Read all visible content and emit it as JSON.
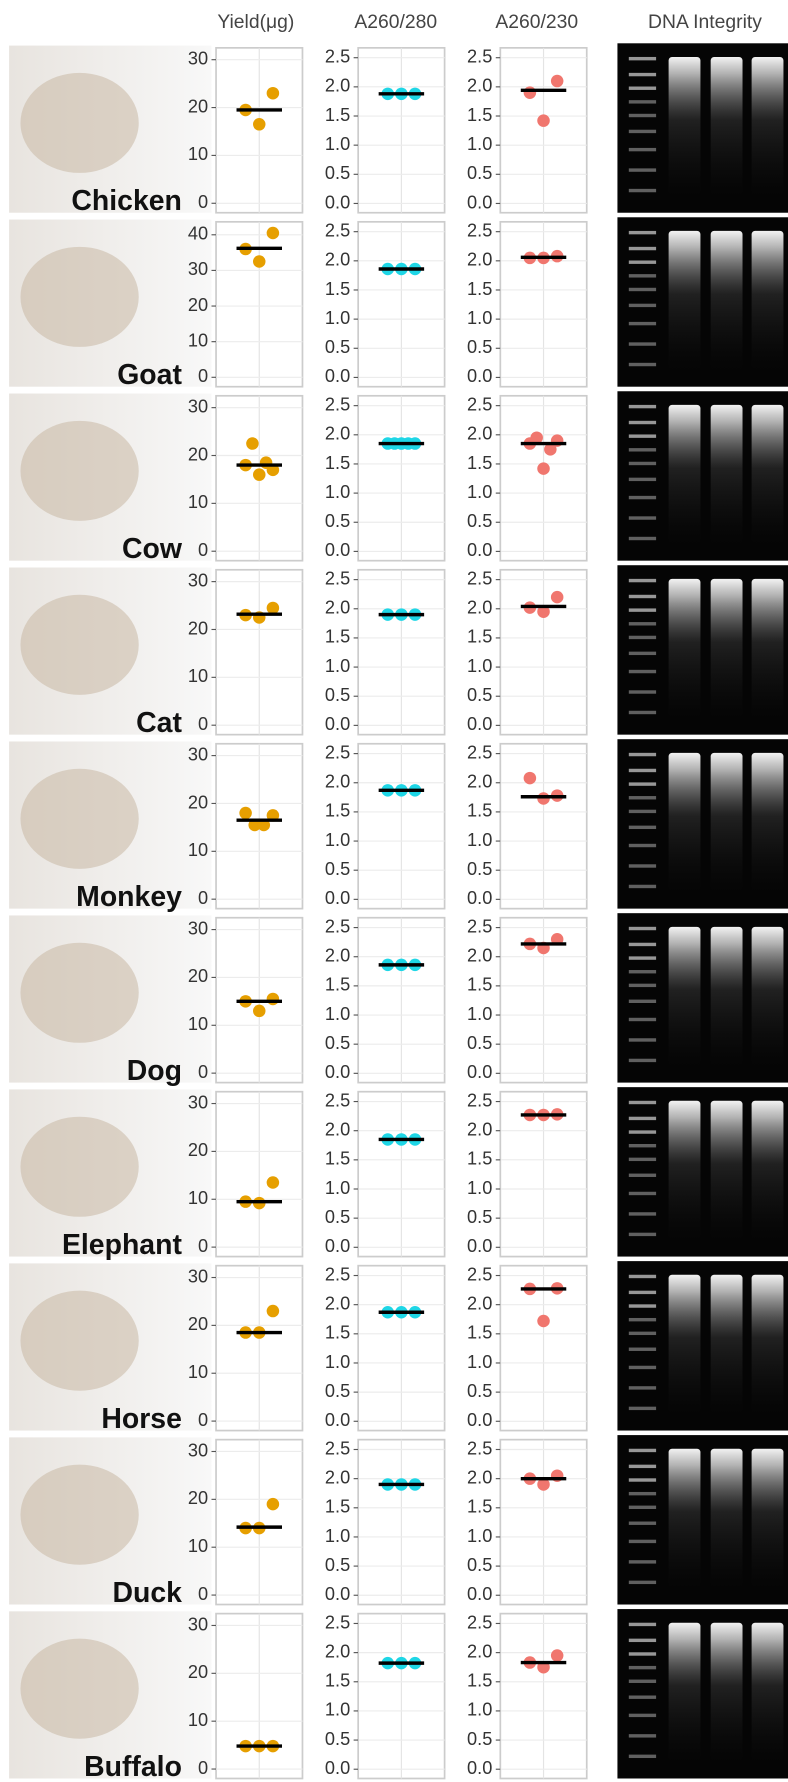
{
  "columns": [
    "Yield(μg)",
    "A260/280",
    "A260/230",
    "DNA Integrity"
  ],
  "rows": [
    "Chicken",
    "Goat",
    "Cow",
    "Cat",
    "Monkey",
    "Dog",
    "Elephant",
    "Horse",
    "Duck",
    "Buffalo"
  ],
  "chart_data": [
    {
      "type": "dot",
      "values": [
        19.5,
        16.5,
        23
      ],
      "median": 19.5,
      "ylim": [
        -1.5,
        32
      ],
      "yticks": [
        0,
        10,
        20,
        30
      ],
      "color": "#E69F00",
      "grid": true
    },
    {
      "type": "dot",
      "values": [
        1.88,
        1.88,
        1.88
      ],
      "median": 1.88,
      "ylim": [
        -0.12,
        2.63
      ],
      "yticks": [
        {
          "value": 0,
          "label": "0.0"
        },
        0.5,
        {
          "value": 1,
          "label": "1.0"
        },
        1.5,
        {
          "value": 2,
          "label": "2.0"
        },
        2.5
      ],
      "color": "#1ED6E6",
      "grid": true
    },
    {
      "type": "dot",
      "values": [
        1.9,
        1.42,
        2.1
      ],
      "median": 1.94,
      "ylim": [
        -0.12,
        2.63
      ],
      "yticks": [
        {
          "value": 0,
          "label": "0.0"
        },
        0.5,
        {
          "value": 1,
          "label": "1.0"
        },
        1.5,
        {
          "value": 2,
          "label": "2.0"
        },
        2.5
      ],
      "color": "#F0766E",
      "grid": true
    },
    {
      "type": "dot",
      "values": [
        36,
        32.5,
        40.5
      ],
      "median": 36.2,
      "ylim": [
        -2,
        43
      ],
      "yticks": [
        0,
        10,
        20,
        30,
        40
      ],
      "color": "#E69F00",
      "grid": true
    },
    {
      "type": "dot",
      "values": [
        1.86,
        1.86,
        1.86
      ],
      "median": 1.86,
      "ylim": [
        -0.12,
        2.63
      ],
      "yticks": [
        {
          "value": 0,
          "label": "0.0"
        },
        0.5,
        {
          "value": 1,
          "label": "1.0"
        },
        1.5,
        {
          "value": 2,
          "label": "2.0"
        },
        2.5
      ],
      "color": "#1ED6E6",
      "grid": true
    },
    {
      "type": "dot",
      "values": [
        2.05,
        2.05,
        2.08
      ],
      "median": 2.06,
      "ylim": [
        -0.12,
        2.63
      ],
      "yticks": [
        {
          "value": 0,
          "label": "0.0"
        },
        0.5,
        {
          "value": 1,
          "label": "1.0"
        },
        1.5,
        {
          "value": 2,
          "label": "2.0"
        },
        2.5
      ],
      "color": "#F0766E",
      "grid": true
    },
    {
      "type": "dot",
      "values": [
        18,
        22.5,
        16,
        18.5,
        17
      ],
      "median": 18,
      "ylim": [
        -1.5,
        32
      ],
      "yticks": [
        0,
        10,
        20,
        30
      ],
      "color": "#E69F00",
      "grid": true
    },
    {
      "type": "dot",
      "values": [
        1.85,
        1.85,
        1.85,
        1.85,
        1.85
      ],
      "median": 1.85,
      "ylim": [
        -0.12,
        2.63
      ],
      "yticks": [
        {
          "value": 0,
          "label": "0.0"
        },
        0.5,
        {
          "value": 1,
          "label": "1.0"
        },
        1.5,
        {
          "value": 2,
          "label": "2.0"
        },
        2.5
      ],
      "color": "#1ED6E6",
      "grid": true
    },
    {
      "type": "dot",
      "values": [
        1.85,
        1.95,
        1.42,
        1.75,
        1.9
      ],
      "median": 1.85,
      "ylim": [
        -0.12,
        2.63
      ],
      "yticks": [
        {
          "value": 0,
          "label": "0.0"
        },
        0.5,
        {
          "value": 1,
          "label": "1.0"
        },
        1.5,
        {
          "value": 2,
          "label": "2.0"
        },
        2.5
      ],
      "color": "#F0766E",
      "grid": true
    },
    {
      "type": "dot",
      "values": [
        23,
        22.5,
        24.5
      ],
      "median": 23.2,
      "ylim": [
        -1.5,
        32
      ],
      "yticks": [
        0,
        10,
        20,
        30
      ],
      "color": "#E69F00",
      "grid": true
    },
    {
      "type": "dot",
      "values": [
        1.9,
        1.9,
        1.9
      ],
      "median": 1.9,
      "ylim": [
        -0.12,
        2.63
      ],
      "yticks": [
        {
          "value": 0,
          "label": "0.0"
        },
        0.5,
        {
          "value": 1,
          "label": "1.0"
        },
        1.5,
        {
          "value": 2,
          "label": "2.0"
        },
        2.5
      ],
      "color": "#1ED6E6",
      "grid": true
    },
    {
      "type": "dot",
      "values": [
        2.02,
        1.95,
        2.2
      ],
      "median": 2.04,
      "ylim": [
        -0.12,
        2.63
      ],
      "yticks": [
        {
          "value": 0,
          "label": "0.0"
        },
        0.5,
        {
          "value": 1,
          "label": "1.0"
        },
        1.5,
        {
          "value": 2,
          "label": "2.0"
        },
        2.5
      ],
      "color": "#F0766E",
      "grid": true
    },
    {
      "type": "dot",
      "values": [
        18,
        15.5,
        15.5,
        17.5
      ],
      "median": 16.5,
      "ylim": [
        -1.5,
        32
      ],
      "yticks": [
        0,
        10,
        20,
        30
      ],
      "color": "#E69F00",
      "grid": true
    },
    {
      "type": "dot",
      "values": [
        1.87,
        1.87,
        1.87
      ],
      "median": 1.87,
      "ylim": [
        -0.12,
        2.63
      ],
      "yticks": [
        {
          "value": 0,
          "label": "0.0"
        },
        0.5,
        {
          "value": 1,
          "label": "1.0"
        },
        1.5,
        {
          "value": 2,
          "label": "2.0"
        },
        2.5
      ],
      "color": "#1ED6E6",
      "grid": true
    },
    {
      "type": "dot",
      "values": [
        2.08,
        1.73,
        1.78
      ],
      "median": 1.76,
      "ylim": [
        -0.12,
        2.63
      ],
      "yticks": [
        {
          "value": 0,
          "label": "0.0"
        },
        0.5,
        {
          "value": 1,
          "label": "1.0"
        },
        1.5,
        {
          "value": 2,
          "label": "2.0"
        },
        2.5
      ],
      "color": "#F0766E",
      "grid": true
    },
    {
      "type": "dot",
      "values": [
        15,
        13,
        15.5
      ],
      "median": 15,
      "ylim": [
        -1.5,
        32
      ],
      "yticks": [
        0,
        10,
        20,
        30
      ],
      "color": "#E69F00",
      "grid": true
    },
    {
      "type": "dot",
      "values": [
        1.86,
        1.86,
        1.86
      ],
      "median": 1.86,
      "ylim": [
        -0.12,
        2.63
      ],
      "yticks": [
        {
          "value": 0,
          "label": "0.0"
        },
        0.5,
        {
          "value": 1,
          "label": "1.0"
        },
        1.5,
        {
          "value": 2,
          "label": "2.0"
        },
        2.5
      ],
      "color": "#1ED6E6",
      "grid": true
    },
    {
      "type": "dot",
      "values": [
        2.22,
        2.15,
        2.3
      ],
      "median": 2.22,
      "ylim": [
        -0.12,
        2.63
      ],
      "yticks": [
        {
          "value": 0,
          "label": "0.0"
        },
        0.5,
        {
          "value": 1,
          "label": "1.0"
        },
        1.5,
        {
          "value": 2,
          "label": "2.0"
        },
        2.5
      ],
      "color": "#F0766E",
      "grid": true
    },
    {
      "type": "dot",
      "values": [
        9.5,
        9.2,
        13.5
      ],
      "median": 9.5,
      "ylim": [
        -1.5,
        32
      ],
      "yticks": [
        0,
        10,
        20,
        30
      ],
      "color": "#E69F00",
      "grid": true
    },
    {
      "type": "dot",
      "values": [
        1.85,
        1.85,
        1.85
      ],
      "median": 1.85,
      "ylim": [
        -0.12,
        2.63
      ],
      "yticks": [
        {
          "value": 0,
          "label": "0.0"
        },
        0.5,
        {
          "value": 1,
          "label": "1.0"
        },
        1.5,
        {
          "value": 2,
          "label": "2.0"
        },
        2.5
      ],
      "color": "#1ED6E6",
      "grid": true
    },
    {
      "type": "dot",
      "values": [
        2.27,
        2.27,
        2.28
      ],
      "median": 2.27,
      "ylim": [
        -0.12,
        2.63
      ],
      "yticks": [
        {
          "value": 0,
          "label": "0.0"
        },
        0.5,
        {
          "value": 1,
          "label": "1.0"
        },
        1.5,
        {
          "value": 2,
          "label": "2.0"
        },
        2.5
      ],
      "color": "#F0766E",
      "grid": true
    },
    {
      "type": "dot",
      "values": [
        18.5,
        18.5,
        23
      ],
      "median": 18.5,
      "ylim": [
        -1.5,
        32
      ],
      "yticks": [
        0,
        10,
        20,
        30
      ],
      "color": "#E69F00",
      "grid": true
    },
    {
      "type": "dot",
      "values": [
        1.87,
        1.87,
        1.87
      ],
      "median": 1.87,
      "ylim": [
        -0.12,
        2.63
      ],
      "yticks": [
        {
          "value": 0,
          "label": "0.0"
        },
        0.5,
        {
          "value": 1,
          "label": "1.0"
        },
        1.5,
        {
          "value": 2,
          "label": "2.0"
        },
        2.5
      ],
      "color": "#1ED6E6",
      "grid": true
    },
    {
      "type": "dot",
      "values": [
        2.27,
        1.72,
        2.28
      ],
      "median": 2.27,
      "ylim": [
        -0.12,
        2.63
      ],
      "yticks": [
        {
          "value": 0,
          "label": "0.0"
        },
        0.5,
        {
          "value": 1,
          "label": "1.0"
        },
        1.5,
        {
          "value": 2,
          "label": "2.0"
        },
        2.5
      ],
      "color": "#F0766E",
      "grid": true
    },
    {
      "type": "dot",
      "values": [
        14,
        14,
        19
      ],
      "median": 14.2,
      "ylim": [
        -1.5,
        32
      ],
      "yticks": [
        0,
        10,
        20,
        30
      ],
      "color": "#E69F00",
      "grid": true
    },
    {
      "type": "dot",
      "values": [
        1.9,
        1.9,
        1.9
      ],
      "median": 1.9,
      "ylim": [
        -0.12,
        2.63
      ],
      "yticks": [
        {
          "value": 0,
          "label": "0.0"
        },
        0.5,
        {
          "value": 1,
          "label": "1.0"
        },
        1.5,
        {
          "value": 2,
          "label": "2.0"
        },
        2.5
      ],
      "color": "#1ED6E6",
      "grid": true
    },
    {
      "type": "dot",
      "values": [
        2.0,
        1.9,
        2.05
      ],
      "median": 2.0,
      "ylim": [
        -0.12,
        2.63
      ],
      "yticks": [
        {
          "value": 0,
          "label": "0.0"
        },
        0.5,
        {
          "value": 1,
          "label": "1.0"
        },
        1.5,
        {
          "value": 2,
          "label": "2.0"
        },
        2.5
      ],
      "color": "#F0766E",
      "grid": true
    },
    {
      "type": "dot",
      "values": [
        4.8,
        4.8,
        4.8
      ],
      "median": 4.8,
      "ylim": [
        -1.5,
        32
      ],
      "yticks": [
        0,
        10,
        20,
        30
      ],
      "color": "#E69F00",
      "grid": true
    },
    {
      "type": "dot",
      "values": [
        1.82,
        1.82,
        1.82
      ],
      "median": 1.82,
      "ylim": [
        -0.12,
        2.63
      ],
      "yticks": [
        {
          "value": 0,
          "label": "0.0"
        },
        0.5,
        {
          "value": 1,
          "label": "1.0"
        },
        1.5,
        {
          "value": 2,
          "label": "2.0"
        },
        2.5
      ],
      "color": "#1ED6E6",
      "grid": true
    },
    {
      "type": "dot",
      "values": [
        1.83,
        1.75,
        1.95
      ],
      "median": 1.83,
      "ylim": [
        -0.12,
        2.63
      ],
      "yticks": [
        {
          "value": 0,
          "label": "0.0"
        },
        0.5,
        {
          "value": 1,
          "label": "1.0"
        },
        1.5,
        {
          "value": 2,
          "label": "2.0"
        },
        2.5
      ],
      "color": "#F0766E",
      "grid": true
    }
  ]
}
